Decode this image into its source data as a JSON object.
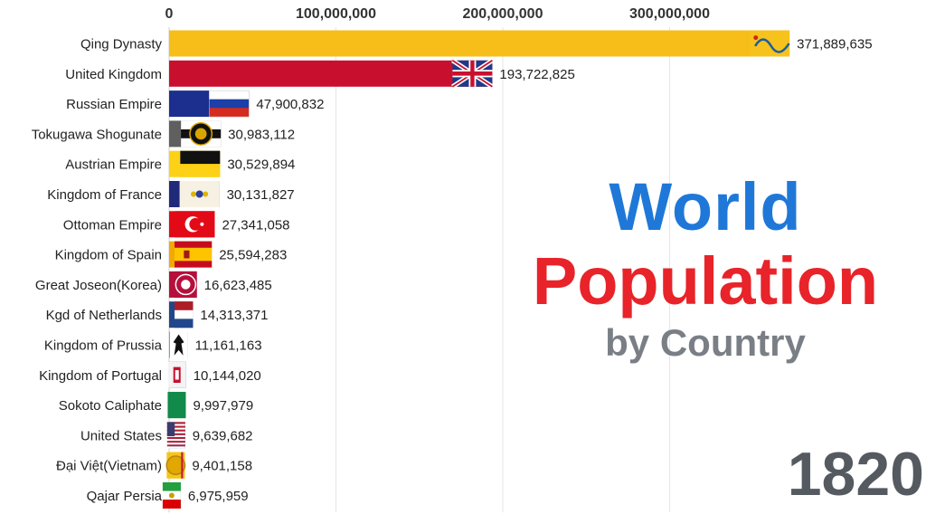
{
  "title": {
    "line1": "World",
    "line2": "Population",
    "line3": "by Country"
  },
  "year": "1820",
  "colors": {
    "title_blue": "#1f78d8",
    "title_red": "#e8232a",
    "subtitle_gray": "#7a7f86",
    "year_gray": "#555a60",
    "grid": "#e6e6e6"
  },
  "chart_data": {
    "type": "bar",
    "orientation": "horizontal",
    "xlim": [
      0,
      400000000
    ],
    "xticks": [
      0,
      100000000,
      200000000,
      300000000
    ],
    "xtick_labels": [
      "0",
      "100,000,000",
      "200,000,000",
      "300,000,000"
    ],
    "grid": true,
    "categories": [
      "Qing Dynasty",
      "United Kingdom",
      "Russian Empire",
      "Tokugawa Shogunate",
      "Austrian Empire",
      "Kingdom of France",
      "Ottoman Empire",
      "Kingdom of Spain",
      "Great Joseon(Korea)",
      "Kgd of Netherlands",
      "Kingdom of Prussia",
      "Kingdom of Portugal",
      "Sokoto Caliphate",
      "United States",
      "Đại Việt(Vietnam)",
      "Qajar Persia"
    ],
    "values": [
      371889635,
      193722825,
      47900832,
      30983112,
      30529894,
      30131827,
      27341058,
      25594283,
      16623485,
      14313371,
      11161163,
      10144020,
      9997979,
      9639682,
      9401158,
      6975959
    ],
    "value_labels": [
      "371,889,635",
      "193,722,825",
      "47,900,832",
      "30,983,112",
      "30,529,894",
      "30,131,827",
      "27,341,058",
      "25,594,283",
      "16,623,485",
      "14,313,371",
      "11,161,163",
      "10,144,020",
      "9,997,979",
      "9,639,682",
      "9,401,158",
      "6,975,959"
    ],
    "bar_colors": [
      "#f7be1a",
      "#c8102e",
      "#1c2f8f",
      "#5f5f5f",
      "#fcd116",
      "#1f2a7a",
      "#e30a17",
      "#f2a900",
      "#b5103c",
      "#21468b",
      "#545454",
      "#2b3f8f",
      "#128a4a",
      "#2a3b7a",
      "#f5c518",
      "#1e8f3e"
    ],
    "flag_icons": [
      "qing-dragon-flag",
      "union-jack-flag",
      "russian-tricolor-flag",
      "tokugawa-mon-flag",
      "austrian-black-yellow-flag",
      "french-bourbon-flag",
      "ottoman-crescent-flag",
      "spanish-flag",
      "joseon-flag",
      "dutch-tricolor-flag",
      "prussian-eagle-flag",
      "portuguese-flag",
      "sokoto-flag",
      "us-flag",
      "vietnam-flag",
      "persia-flag"
    ]
  }
}
